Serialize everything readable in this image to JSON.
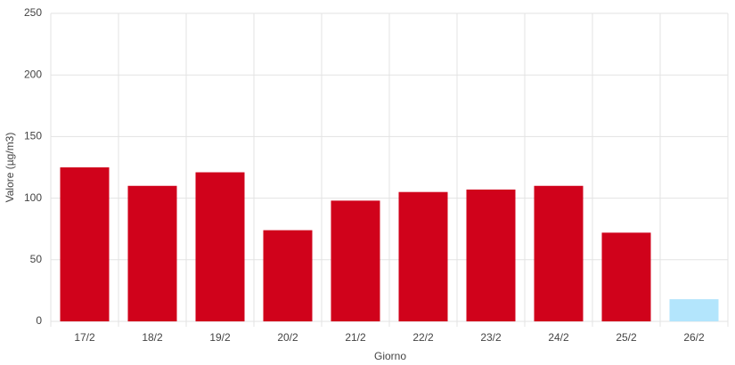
{
  "chart_data": {
    "type": "bar",
    "x_label": "Giorno",
    "y_label": "Valore (µg/m3)",
    "categories": [
      "17/2",
      "18/2",
      "19/2",
      "20/2",
      "21/2",
      "22/2",
      "23/2",
      "24/2",
      "25/2",
      "26/2"
    ],
    "values": [
      125,
      110,
      121,
      74,
      98,
      105,
      107,
      110,
      72,
      18
    ],
    "colors": [
      "#d0021b",
      "#d0021b",
      "#d0021b",
      "#d0021b",
      "#d0021b",
      "#d0021b",
      "#d0021b",
      "#d0021b",
      "#d0021b",
      "#b3e5fc"
    ],
    "ylim": [
      0,
      250
    ],
    "yticks": [
      0,
      50,
      100,
      150,
      200,
      250
    ],
    "grid": true
  }
}
